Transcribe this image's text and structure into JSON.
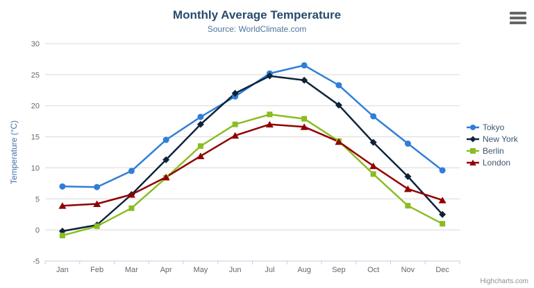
{
  "header": {
    "title": "Monthly Average Temperature",
    "subtitle": "Source: WorldClimate.com"
  },
  "credits_label": "Highcharts.com",
  "menu_icon": "hamburger-icon",
  "colors": {
    "title": "#274b6d",
    "subtitle": "#4d759e",
    "axis_title": "#4572A7",
    "tick_label": "#666666",
    "gridline": "#D8D8D8",
    "axis_line": "#C0D0E0",
    "legend_text": "#3E576F",
    "menu_icon": "#666666",
    "credits": "#8f8f8f"
  },
  "chart_data": {
    "type": "line",
    "title": "Monthly Average Temperature",
    "subtitle": "Source: WorldClimate.com",
    "categories": [
      "Jan",
      "Feb",
      "Mar",
      "Apr",
      "May",
      "Jun",
      "Jul",
      "Aug",
      "Sep",
      "Oct",
      "Nov",
      "Dec"
    ],
    "xlabel": "",
    "ylabel": "Temperature (°C)",
    "ylim": [
      -5,
      30
    ],
    "ytick_interval": 5,
    "yticks": [
      -5,
      0,
      5,
      10,
      15,
      20,
      25,
      30
    ],
    "grid": "horizontal",
    "legend_position": "right",
    "series": [
      {
        "name": "Tokyo",
        "color": "#2f7ed8",
        "marker": "circle",
        "values": [
          7.0,
          6.9,
          9.5,
          14.5,
          18.2,
          21.5,
          25.2,
          26.5,
          23.3,
          18.3,
          13.9,
          9.6
        ]
      },
      {
        "name": "New York",
        "color": "#0d233a",
        "marker": "diamond",
        "values": [
          -0.2,
          0.8,
          5.7,
          11.3,
          17.0,
          22.0,
          24.8,
          24.1,
          20.1,
          14.1,
          8.6,
          2.5
        ]
      },
      {
        "name": "Berlin",
        "color": "#8bbc21",
        "marker": "square",
        "values": [
          -0.9,
          0.6,
          3.5,
          8.4,
          13.5,
          17.0,
          18.6,
          17.9,
          14.3,
          9.0,
          3.9,
          1.0
        ]
      },
      {
        "name": "London",
        "color": "#910000",
        "marker": "triangle",
        "values": [
          3.9,
          4.2,
          5.7,
          8.5,
          11.9,
          15.2,
          17.0,
          16.6,
          14.2,
          10.3,
          6.6,
          4.8
        ]
      }
    ]
  }
}
